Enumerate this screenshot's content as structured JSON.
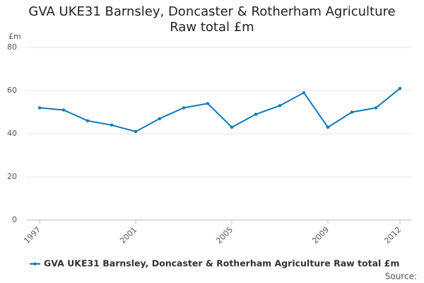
{
  "chart_data": {
    "type": "line",
    "title": "GVA UKE31 Barnsley, Doncaster & Rotherham Agriculture Raw total £m",
    "y_label": "£m",
    "x": [
      1997,
      1998,
      1999,
      2000,
      2001,
      2002,
      2003,
      2004,
      2005,
      2006,
      2007,
      2008,
      2009,
      2010,
      2011,
      2012
    ],
    "series": [
      {
        "name": "GVA UKE31 Barnsley, Doncaster & Rotherham Agriculture Raw total £m",
        "color": "#0e79b8",
        "values": [
          52,
          51,
          46,
          44,
          41,
          47,
          52,
          54,
          43,
          49,
          53,
          59,
          43,
          50,
          52,
          61
        ]
      }
    ],
    "xlim": [
      1997,
      2012
    ],
    "xticks": [
      1997,
      2001,
      2005,
      2009,
      2012
    ],
    "ylim": [
      0,
      80
    ],
    "yticks": [
      0,
      20,
      40,
      60,
      80
    ],
    "grid": true,
    "source": "Source:"
  }
}
